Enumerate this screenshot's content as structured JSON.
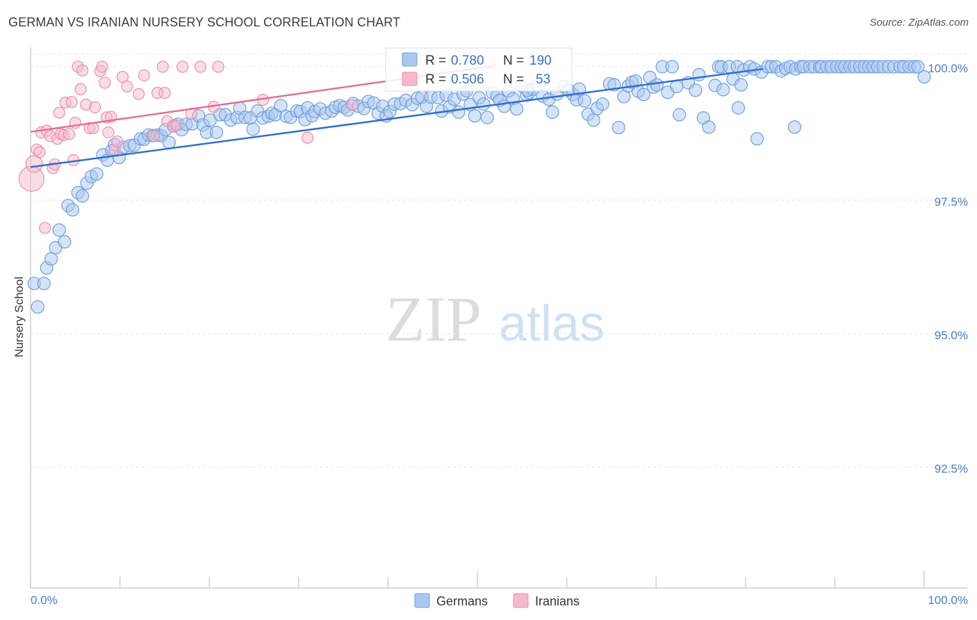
{
  "title": "GERMAN VS IRANIAN NURSERY SCHOOL CORRELATION CHART",
  "source": "Source: ZipAtlas.com",
  "watermark": {
    "zip": "ZIP",
    "atlas": "atlas"
  },
  "chart_data": {
    "type": "scatter",
    "xlabel": "",
    "ylabel": "Nursery School",
    "xlim": [
      0,
      100
    ],
    "ylim": [
      90.0,
      100.3
    ],
    "x_tick_labels": [
      "0.0%",
      "100.0%"
    ],
    "y_ticks": [
      {
        "value": 100.0,
        "label": "100.0%"
      },
      {
        "value": 97.5,
        "label": "97.5%"
      },
      {
        "value": 95.0,
        "label": "95.0%"
      },
      {
        "value": 92.5,
        "label": "92.5%"
      }
    ],
    "legend": {
      "rows": [
        {
          "r_label": "R =",
          "r_value": "0.780",
          "n_label": "N =",
          "n_value": "190",
          "color": "#a9c8f0"
        },
        {
          "r_label": "R =",
          "r_value": "0.506",
          "n_label": "N =",
          "n_value": "53",
          "color": "#f6b9cc"
        }
      ]
    },
    "series": [
      {
        "name": "Germans",
        "color": "#a9c8f0",
        "stroke": "#6d9fdc",
        "trend_color": "#2f6fcf",
        "trend": {
          "x": [
            0,
            82
          ],
          "y": [
            98.12,
            99.96
          ]
        },
        "points": [
          [
            0.4,
            95.94
          ],
          [
            0.8,
            95.5
          ],
          [
            1.5,
            95.94
          ],
          [
            1.8,
            96.23
          ],
          [
            2.3,
            96.4
          ],
          [
            2.8,
            96.61
          ],
          [
            3.2,
            96.94
          ],
          [
            3.8,
            96.72
          ],
          [
            4.2,
            97.4
          ],
          [
            4.7,
            97.32
          ],
          [
            5.3,
            97.64
          ],
          [
            5.8,
            97.58
          ],
          [
            6.3,
            97.82
          ],
          [
            6.8,
            97.94
          ],
          [
            7.4,
            97.99
          ],
          [
            8.1,
            98.35
          ],
          [
            8.6,
            98.25
          ],
          [
            9.1,
            98.43
          ],
          [
            9.4,
            98.54
          ],
          [
            9.9,
            98.3
          ],
          [
            10.4,
            98.49
          ],
          [
            11.1,
            98.52
          ],
          [
            11.6,
            98.53
          ],
          [
            12.3,
            98.65
          ],
          [
            12.7,
            98.64
          ],
          [
            13.2,
            98.72
          ],
          [
            13.7,
            98.71
          ],
          [
            14.2,
            98.72
          ],
          [
            14.6,
            98.71
          ],
          [
            15.1,
            98.82
          ],
          [
            15.5,
            98.58
          ],
          [
            16.0,
            98.89
          ],
          [
            16.5,
            98.92
          ],
          [
            16.9,
            98.82
          ],
          [
            17.4,
            98.92
          ],
          [
            18.1,
            98.93
          ],
          [
            18.8,
            99.08
          ],
          [
            19.3,
            98.91
          ],
          [
            19.7,
            98.77
          ],
          [
            20.1,
            99.0
          ],
          [
            20.8,
            98.77
          ],
          [
            21.2,
            99.1
          ],
          [
            21.8,
            99.1
          ],
          [
            22.4,
            99.0
          ],
          [
            23.1,
            99.05
          ],
          [
            23.4,
            99.22
          ],
          [
            24.0,
            99.05
          ],
          [
            24.6,
            99.04
          ],
          [
            24.9,
            98.83
          ],
          [
            25.4,
            99.17
          ],
          [
            26.0,
            99.04
          ],
          [
            26.6,
            99.07
          ],
          [
            27.0,
            99.13
          ],
          [
            27.4,
            99.1
          ],
          [
            28.0,
            99.27
          ],
          [
            28.6,
            99.07
          ],
          [
            29.1,
            99.05
          ],
          [
            29.8,
            99.17
          ],
          [
            30.2,
            99.16
          ],
          [
            30.7,
            99.01
          ],
          [
            31.0,
            99.23
          ],
          [
            31.5,
            99.08
          ],
          [
            31.8,
            99.16
          ],
          [
            32.4,
            99.21
          ],
          [
            33.0,
            99.13
          ],
          [
            33.7,
            99.17
          ],
          [
            34.1,
            99.24
          ],
          [
            34.6,
            99.27
          ],
          [
            35.1,
            99.24
          ],
          [
            35.5,
            99.19
          ],
          [
            36.1,
            99.31
          ],
          [
            36.7,
            99.26
          ],
          [
            37.3,
            99.22
          ],
          [
            37.8,
            99.35
          ],
          [
            38.4,
            99.32
          ],
          [
            38.9,
            99.13
          ],
          [
            39.4,
            99.26
          ],
          [
            39.8,
            99.08
          ],
          [
            40.2,
            99.16
          ],
          [
            40.7,
            99.3
          ],
          [
            41.4,
            99.31
          ],
          [
            42.0,
            99.37
          ],
          [
            42.7,
            99.29
          ],
          [
            43.3,
            99.41
          ],
          [
            43.8,
            99.43
          ],
          [
            44.3,
            99.26
          ],
          [
            44.8,
            99.43
          ],
          [
            45.6,
            99.42
          ],
          [
            46.0,
            99.17
          ],
          [
            46.5,
            99.47
          ],
          [
            46.9,
            99.25
          ],
          [
            47.4,
            99.39
          ],
          [
            47.9,
            99.15
          ],
          [
            48.4,
            99.49
          ],
          [
            48.8,
            99.55
          ],
          [
            49.2,
            99.29
          ],
          [
            49.7,
            99.08
          ],
          [
            50.2,
            99.42
          ],
          [
            50.7,
            99.3
          ],
          [
            51.1,
            99.05
          ],
          [
            51.7,
            99.51
          ],
          [
            52.2,
            99.45
          ],
          [
            52.5,
            99.37
          ],
          [
            53.0,
            99.26
          ],
          [
            53.5,
            99.55
          ],
          [
            54.0,
            99.4
          ],
          [
            54.4,
            99.21
          ],
          [
            54.9,
            99.64
          ],
          [
            55.5,
            99.47
          ],
          [
            55.8,
            99.51
          ],
          [
            56.2,
            99.58
          ],
          [
            56.8,
            99.66
          ],
          [
            57.3,
            99.45
          ],
          [
            58.0,
            99.39
          ],
          [
            58.4,
            99.15
          ],
          [
            58.9,
            99.49
          ],
          [
            59.7,
            99.63
          ],
          [
            60.2,
            99.56
          ],
          [
            60.7,
            99.48
          ],
          [
            61.1,
            99.38
          ],
          [
            61.4,
            99.58
          ],
          [
            62.0,
            99.36
          ],
          [
            62.4,
            99.11
          ],
          [
            63.0,
            99.0
          ],
          [
            63.4,
            99.22
          ],
          [
            64.0,
            99.3
          ],
          [
            64.8,
            99.68
          ],
          [
            65.3,
            99.66
          ],
          [
            65.8,
            98.86
          ],
          [
            66.4,
            99.44
          ],
          [
            66.9,
            99.64
          ],
          [
            67.3,
            99.71
          ],
          [
            67.7,
            99.73
          ],
          [
            68.0,
            99.54
          ],
          [
            68.6,
            99.48
          ],
          [
            69.3,
            99.8
          ],
          [
            69.7,
            99.62
          ],
          [
            70.1,
            99.66
          ],
          [
            70.7,
            100.0
          ],
          [
            71.3,
            99.52
          ],
          [
            71.8,
            100.0
          ],
          [
            72.3,
            99.63
          ],
          [
            72.6,
            99.1
          ],
          [
            73.6,
            99.7
          ],
          [
            74.4,
            99.56
          ],
          [
            74.8,
            99.85
          ],
          [
            75.3,
            99.04
          ],
          [
            75.9,
            98.87
          ],
          [
            76.6,
            99.65
          ],
          [
            77.0,
            100.0
          ],
          [
            77.3,
            100.0
          ],
          [
            77.5,
            99.57
          ],
          [
            78.2,
            100.0
          ],
          [
            78.6,
            99.77
          ],
          [
            79.1,
            100.0
          ],
          [
            79.5,
            99.66
          ],
          [
            79.8,
            99.94
          ],
          [
            80.5,
            100.0
          ],
          [
            81.0,
            99.96
          ],
          [
            81.3,
            98.65
          ],
          [
            81.8,
            99.9
          ],
          [
            82.5,
            100.0
          ],
          [
            82.9,
            100.0
          ],
          [
            83.4,
            100.0
          ],
          [
            84.0,
            99.92
          ],
          [
            84.5,
            99.97
          ],
          [
            85.0,
            100.0
          ],
          [
            85.6,
            99.96
          ],
          [
            86.2,
            100.0
          ],
          [
            86.5,
            100.0
          ],
          [
            87.2,
            100.0
          ],
          [
            87.7,
            100.0
          ],
          [
            88.3,
            100.0
          ],
          [
            88.5,
            100.0
          ],
          [
            89.1,
            100.0
          ],
          [
            89.6,
            100.0
          ],
          [
            90.2,
            100.0
          ],
          [
            90.7,
            100.0
          ],
          [
            91.1,
            100.0
          ],
          [
            91.7,
            100.0
          ],
          [
            92.2,
            100.0
          ],
          [
            92.8,
            100.0
          ],
          [
            93.3,
            100.0
          ],
          [
            93.8,
            100.0
          ],
          [
            94.3,
            100.0
          ],
          [
            94.8,
            100.0
          ],
          [
            95.4,
            100.0
          ],
          [
            96.0,
            100.0
          ],
          [
            96.6,
            100.0
          ],
          [
            97.3,
            100.0
          ],
          [
            97.7,
            100.0
          ],
          [
            98.3,
            100.0
          ],
          [
            98.9,
            100.0
          ],
          [
            99.3,
            100.0
          ],
          [
            100.0,
            99.81
          ],
          [
            55.6,
            99.56
          ],
          [
            79.2,
            99.23
          ],
          [
            85.5,
            98.87
          ]
        ]
      },
      {
        "name": "Iranians",
        "color": "#f6b9cc",
        "stroke": "#ea8fab",
        "trend_color": "#e36f96",
        "trend": {
          "x": [
            0,
            52
          ],
          "y": [
            98.78,
            100.02
          ]
        },
        "points": [
          [
            0.1,
            97.9
          ],
          [
            0.4,
            98.18
          ],
          [
            0.7,
            98.45
          ],
          [
            1.0,
            98.4
          ],
          [
            1.2,
            98.77
          ],
          [
            1.6,
            96.98
          ],
          [
            1.8,
            98.8
          ],
          [
            2.2,
            98.7
          ],
          [
            2.5,
            98.1
          ],
          [
            2.7,
            98.17
          ],
          [
            3.0,
            98.65
          ],
          [
            3.2,
            99.14
          ],
          [
            3.4,
            98.74
          ],
          [
            3.7,
            98.72
          ],
          [
            3.9,
            99.33
          ],
          [
            4.3,
            98.74
          ],
          [
            4.6,
            99.34
          ],
          [
            4.8,
            98.25
          ],
          [
            5.0,
            98.95
          ],
          [
            5.3,
            100.0
          ],
          [
            5.6,
            99.58
          ],
          [
            5.8,
            99.93
          ],
          [
            6.2,
            99.29
          ],
          [
            6.6,
            98.85
          ],
          [
            7.0,
            98.85
          ],
          [
            7.2,
            99.24
          ],
          [
            7.8,
            99.92
          ],
          [
            8.0,
            100.0
          ],
          [
            8.3,
            99.7
          ],
          [
            8.5,
            99.05
          ],
          [
            8.7,
            98.77
          ],
          [
            9.0,
            99.06
          ],
          [
            9.4,
            98.45
          ],
          [
            9.7,
            98.6
          ],
          [
            10.3,
            99.81
          ],
          [
            10.8,
            99.63
          ],
          [
            12.1,
            99.49
          ],
          [
            12.7,
            99.84
          ],
          [
            13.8,
            98.7
          ],
          [
            14.2,
            99.51
          ],
          [
            14.8,
            100.0
          ],
          [
            15.0,
            99.51
          ],
          [
            15.3,
            98.98
          ],
          [
            16.0,
            98.88
          ],
          [
            16.3,
            98.9
          ],
          [
            17.0,
            100.0
          ],
          [
            18.0,
            99.12
          ],
          [
            19.0,
            100.0
          ],
          [
            20.5,
            99.25
          ],
          [
            21.0,
            100.0
          ],
          [
            26.0,
            99.38
          ],
          [
            31.0,
            98.67
          ],
          [
            36.0,
            99.28
          ]
        ]
      }
    ]
  },
  "bottom_legend": {
    "series_a": "Germans",
    "series_b": "Iranians"
  }
}
